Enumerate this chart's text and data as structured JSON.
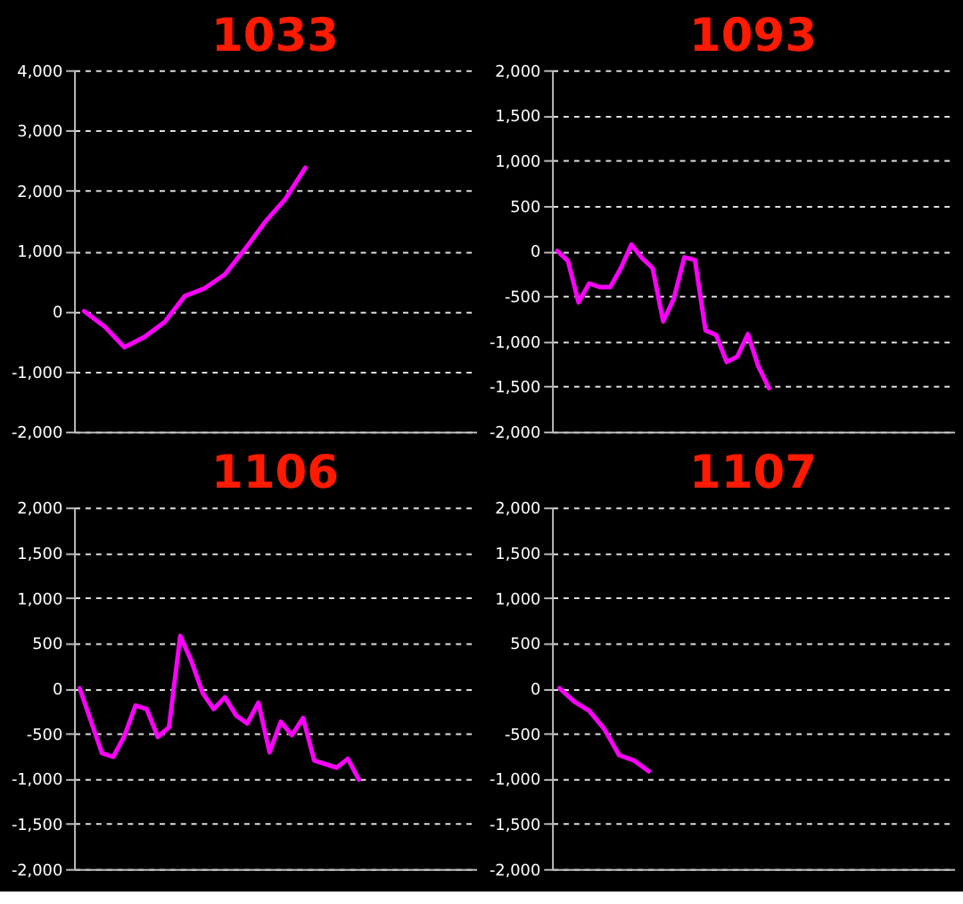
{
  "chart_data": [
    {
      "type": "line",
      "title": "1033",
      "tick_labels": "y",
      "grid": "y",
      "line_style": "solid",
      "marker": "none",
      "categories": [
        null,
        null,
        null,
        null,
        null,
        null,
        null,
        null,
        null,
        null,
        null,
        null,
        null,
        null,
        null,
        null,
        null,
        null,
        null,
        null
      ],
      "series": [
        {
          "color": "#ff00ff",
          "values": [
            0,
            -250,
            -600,
            -430,
            -180,
            250,
            380,
            610,
            1030,
            1480,
            1860,
            2380,
            null,
            null,
            null,
            null,
            null,
            null,
            null,
            null
          ]
        }
      ],
      "ylim": [
        -2000,
        4000
      ],
      "yticks": [
        {
          "value": -2000,
          "label": "-2,000"
        },
        {
          "value": -1000,
          "label": "-1,000"
        },
        {
          "value": 0,
          "label": "0"
        },
        {
          "value": 1000,
          "label": "1,000"
        },
        {
          "value": 2000,
          "label": "2,000"
        },
        {
          "value": 3000,
          "label": "3,000"
        },
        {
          "value": 4000,
          "label": "4,000"
        }
      ]
    },
    {
      "type": "line",
      "title": "1093",
      "tick_labels": "y",
      "grid": "y",
      "line_style": "solid",
      "marker": "none",
      "categories": [
        null,
        null,
        null,
        null,
        null,
        null,
        null,
        null,
        null,
        null,
        null,
        null,
        null,
        null,
        null,
        null,
        null,
        null,
        null,
        null,
        null,
        null,
        null,
        null,
        null,
        null,
        null,
        null,
        null,
        null,
        null,
        null,
        null,
        null,
        null,
        null,
        null,
        null
      ],
      "series": [
        {
          "color": "#ff00ff",
          "values": [
            0,
            -110,
            -570,
            -360,
            -400,
            -400,
            -190,
            70,
            -80,
            -190,
            -780,
            -530,
            -70,
            -100,
            -880,
            -930,
            -1230,
            -1170,
            -920,
            -1280,
            -1520,
            null,
            null,
            null,
            null,
            null,
            null,
            null,
            null,
            null,
            null,
            null,
            null,
            null,
            null,
            null,
            null,
            null
          ]
        }
      ],
      "ylim": [
        -2000,
        2000
      ],
      "yticks": [
        {
          "value": -2000,
          "label": "-2,000"
        },
        {
          "value": -1500,
          "label": "-1,500"
        },
        {
          "value": -1000,
          "label": "-1,000"
        },
        {
          "value": -500,
          "label": "-500"
        },
        {
          "value": 0,
          "label": "0"
        },
        {
          "value": 500,
          "label": "500"
        },
        {
          "value": 1000,
          "label": "1,000"
        },
        {
          "value": 1500,
          "label": "1,500"
        },
        {
          "value": 2000,
          "label": "2,000"
        }
      ]
    },
    {
      "type": "line",
      "title": "1106",
      "tick_labels": "y",
      "grid": "y",
      "line_style": "solid",
      "marker": "none",
      "categories": [
        null,
        null,
        null,
        null,
        null,
        null,
        null,
        null,
        null,
        null,
        null,
        null,
        null,
        null,
        null,
        null,
        null,
        null,
        null,
        null,
        null,
        null,
        null,
        null,
        null,
        null,
        null,
        null,
        null,
        null,
        null,
        null,
        null,
        null,
        null,
        null
      ],
      "series": [
        {
          "color": "#ff00ff",
          "values": [
            0,
            -360,
            -720,
            -760,
            -530,
            -190,
            -230,
            -540,
            -430,
            580,
            300,
            -50,
            -230,
            -100,
            -300,
            -390,
            -160,
            -710,
            -370,
            -520,
            -330,
            -800,
            -840,
            -880,
            -780,
            -1010,
            null,
            null,
            null,
            null,
            null,
            null,
            null,
            null,
            null,
            null
          ]
        }
      ],
      "ylim": [
        -2000,
        2000
      ],
      "yticks": [
        {
          "value": -2000,
          "label": "-2,000"
        },
        {
          "value": -1500,
          "label": "-1,500"
        },
        {
          "value": -1000,
          "label": "-1,000"
        },
        {
          "value": -500,
          "label": "-500"
        },
        {
          "value": 0,
          "label": "0"
        },
        {
          "value": 500,
          "label": "500"
        },
        {
          "value": 1000,
          "label": "1,000"
        },
        {
          "value": 1500,
          "label": "1,500"
        },
        {
          "value": 2000,
          "label": "2,000"
        }
      ]
    },
    {
      "type": "line",
      "title": "1107",
      "tick_labels": "y",
      "grid": "y",
      "line_style": "solid",
      "marker": "none",
      "categories": [
        null,
        null,
        null,
        null,
        null,
        null,
        null,
        null,
        null,
        null,
        null,
        null,
        null,
        null,
        null,
        null,
        null,
        null,
        null,
        null,
        null,
        null,
        null,
        null,
        null,
        null,
        null
      ],
      "series": [
        {
          "color": "#ff00ff",
          "values": [
            0,
            -150,
            -250,
            -450,
            -740,
            -800,
            -920,
            null,
            null,
            null,
            null,
            null,
            null,
            null,
            null,
            null,
            null,
            null,
            null,
            null,
            null,
            null,
            null,
            null,
            null,
            null,
            null
          ]
        }
      ],
      "ylim": [
        -2000,
        2000
      ],
      "yticks": [
        {
          "value": -2000,
          "label": "-2,000"
        },
        {
          "value": -1500,
          "label": "-1,500"
        },
        {
          "value": -1000,
          "label": "-1,000"
        },
        {
          "value": -500,
          "label": "-500"
        },
        {
          "value": 0,
          "label": "0"
        },
        {
          "value": 500,
          "label": "500"
        },
        {
          "value": 1000,
          "label": "1,000"
        },
        {
          "value": 1500,
          "label": "1,500"
        },
        {
          "value": 2000,
          "label": "2,000"
        }
      ]
    }
  ]
}
